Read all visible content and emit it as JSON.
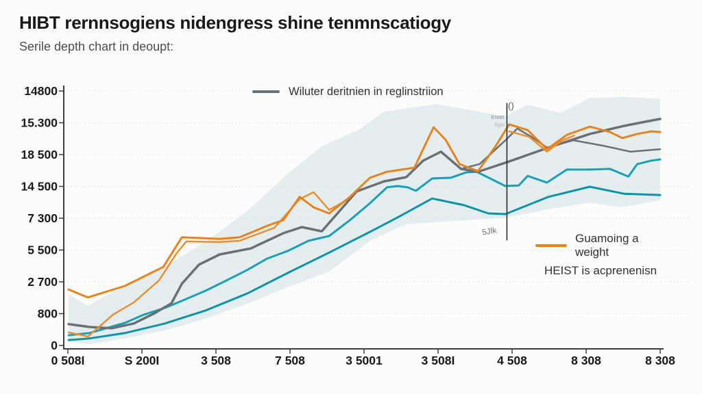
{
  "page": {
    "background": "#fcfcfa"
  },
  "header": {
    "title": "HIBT rernnsogiens nidengress shine tenmnscatiogy",
    "subtitle": "Serile depth chart in deoupt:"
  },
  "legend_top": {
    "label": "Wiluter deritnien in reglinstriion",
    "marker_color": "#6a7075"
  },
  "legend_right": {
    "line1": "Guamoing a weight",
    "line2": "HEIST is acprenenisn",
    "marker_color": "#e8821c"
  },
  "annotations": {
    "paren": "()",
    "note_top": "Inver",
    "note_top2": "hgw",
    "note_bottom": "5Jlk"
  },
  "colors": {
    "orange": "#e8821c",
    "gray": "#6a7075",
    "teal_upper": "#1b9fb5",
    "teal_lower": "#0d93a6",
    "band": "#cfe1e8",
    "axis": "#3c3f42",
    "grid": "#e4e4df",
    "tick_text": "#17191d"
  },
  "chart_data": {
    "type": "line",
    "title": "HIBT rernnsogiens nidengress shine tenmnscatiogy",
    "subtitle": "Serile depth chart in deoupt:",
    "grid": "dotted horizontal",
    "legend": [
      "Wiluter deritnien in reglinstriion",
      "Guamoing a weight / HEIST is acprenenisn"
    ],
    "xlim": [
      0,
      8
    ],
    "ylim": [
      0,
      8
    ],
    "x_tick_labels": [
      "0 508I",
      "S 200I",
      "3 508",
      "7 508",
      "3 5001",
      "3 508I",
      "4 508",
      "8 308",
      "8 308"
    ],
    "y_tick_labels_top_down": [
      "14800",
      "15.300",
      "18 500",
      "14 500",
      "7 300",
      "5 500",
      "2 700",
      "800",
      "0"
    ],
    "note": "y values are in gridline units (0 = bottom axis, 8 = top gridline); x in tick units 0-8",
    "band": {
      "color": "#cfe1e8",
      "opacity": 0.55,
      "top": [
        [
          0.01,
          1.61
        ],
        [
          0.27,
          1.25
        ],
        [
          0.77,
          1.89
        ],
        [
          1.31,
          2.49
        ],
        [
          1.86,
          3.25
        ],
        [
          2.42,
          4.22
        ],
        [
          2.97,
          5.4
        ],
        [
          3.43,
          6.26
        ],
        [
          3.94,
          6.8
        ],
        [
          4.27,
          7.35
        ],
        [
          4.98,
          7.59
        ],
        [
          5.91,
          7.2
        ],
        [
          6.21,
          7.57
        ],
        [
          6.65,
          7.31
        ],
        [
          7.05,
          7.78
        ],
        [
          7.51,
          7.81
        ],
        [
          8.0,
          7.76
        ]
      ],
      "bottom": [
        [
          0.01,
          0.11
        ],
        [
          0.29,
          0.04
        ],
        [
          0.77,
          0.22
        ],
        [
          1.31,
          0.47
        ],
        [
          1.86,
          0.84
        ],
        [
          2.42,
          1.31
        ],
        [
          2.97,
          1.83
        ],
        [
          3.53,
          2.32
        ],
        [
          4.08,
          3.29
        ],
        [
          4.57,
          3.81
        ],
        [
          5.19,
          3.91
        ],
        [
          5.68,
          3.98
        ],
        [
          5.91,
          4.02
        ],
        [
          6.49,
          4.28
        ],
        [
          7.05,
          4.49
        ],
        [
          7.47,
          4.34
        ],
        [
          8.0,
          4.56
        ]
      ]
    },
    "series": [
      {
        "name": "teal-lower",
        "color": "#0d93a6",
        "width": 3,
        "points": [
          [
            0.01,
            0.17
          ],
          [
            0.29,
            0.22
          ],
          [
            0.77,
            0.39
          ],
          [
            1.31,
            0.69
          ],
          [
            1.86,
            1.1
          ],
          [
            2.42,
            1.63
          ],
          [
            2.97,
            2.28
          ],
          [
            3.53,
            2.92
          ],
          [
            4.08,
            3.57
          ],
          [
            4.45,
            4.02
          ],
          [
            4.92,
            4.62
          ],
          [
            5.35,
            4.41
          ],
          [
            5.68,
            4.15
          ],
          [
            5.91,
            4.13
          ],
          [
            6.49,
            4.67
          ],
          [
            7.05,
            4.99
          ],
          [
            7.51,
            4.77
          ],
          [
            8.0,
            4.73
          ]
        ]
      },
      {
        "name": "teal-upper",
        "color": "#1b9fb5",
        "width": 3,
        "points": [
          [
            0.01,
            0.32
          ],
          [
            0.29,
            0.39
          ],
          [
            0.77,
            0.71
          ],
          [
            1.03,
            0.97
          ],
          [
            1.31,
            1.18
          ],
          [
            1.58,
            1.44
          ],
          [
            1.86,
            1.72
          ],
          [
            2.14,
            2.04
          ],
          [
            2.42,
            2.37
          ],
          [
            2.69,
            2.73
          ],
          [
            2.97,
            2.97
          ],
          [
            3.25,
            3.29
          ],
          [
            3.53,
            3.44
          ],
          [
            3.81,
            3.94
          ],
          [
            4.08,
            4.47
          ],
          [
            4.31,
            4.97
          ],
          [
            4.45,
            5.01
          ],
          [
            4.59,
            4.97
          ],
          [
            4.7,
            4.86
          ],
          [
            4.92,
            5.25
          ],
          [
            5.17,
            5.27
          ],
          [
            5.38,
            5.44
          ],
          [
            5.52,
            5.46
          ],
          [
            5.91,
            5.01
          ],
          [
            6.09,
            5.03
          ],
          [
            6.21,
            5.33
          ],
          [
            6.47,
            5.12
          ],
          [
            6.74,
            5.53
          ],
          [
            7.05,
            5.53
          ],
          [
            7.32,
            5.55
          ],
          [
            7.57,
            5.31
          ],
          [
            7.69,
            5.7
          ],
          [
            7.88,
            5.81
          ],
          [
            8.0,
            5.85
          ]
        ]
      },
      {
        "name": "gray-secondary",
        "color": "#6a7075",
        "width": 2.5,
        "points": [
          [
            5.34,
            5.57
          ],
          [
            5.56,
            5.7
          ],
          [
            5.91,
            6.45
          ],
          [
            6.07,
            6.82
          ],
          [
            6.26,
            6.56
          ],
          [
            6.47,
            6.22
          ],
          [
            6.83,
            6.45
          ],
          [
            7.23,
            6.28
          ],
          [
            7.6,
            6.09
          ],
          [
            8.0,
            6.17
          ]
        ]
      },
      {
        "name": "gray-main",
        "color": "#6a7075",
        "width": 3.5,
        "points": [
          [
            0.01,
            0.67
          ],
          [
            0.29,
            0.58
          ],
          [
            0.59,
            0.54
          ],
          [
            0.89,
            0.69
          ],
          [
            1.17,
            1.01
          ],
          [
            1.4,
            1.33
          ],
          [
            1.54,
            1.94
          ],
          [
            1.77,
            2.54
          ],
          [
            2.05,
            2.86
          ],
          [
            2.47,
            3.05
          ],
          [
            2.91,
            3.53
          ],
          [
            3.16,
            3.72
          ],
          [
            3.43,
            3.59
          ],
          [
            3.9,
            4.84
          ],
          [
            4.27,
            5.16
          ],
          [
            4.57,
            5.29
          ],
          [
            4.8,
            5.81
          ],
          [
            5.04,
            6.09
          ],
          [
            5.31,
            5.55
          ],
          [
            5.54,
            5.46
          ],
          [
            5.93,
            5.76
          ],
          [
            6.49,
            6.22
          ],
          [
            7.05,
            6.65
          ],
          [
            7.51,
            6.9
          ],
          [
            7.79,
            7.03
          ],
          [
            8.0,
            7.12
          ]
        ]
      },
      {
        "name": "orange-secondary",
        "color": "#ea8f2e",
        "width": 2.5,
        "points": [
          [
            0.01,
            0.41
          ],
          [
            0.27,
            0.28
          ],
          [
            0.61,
            0.97
          ],
          [
            0.89,
            1.35
          ],
          [
            1.23,
            2.04
          ],
          [
            1.47,
            2.9
          ],
          [
            1.6,
            3.27
          ],
          [
            2.05,
            3.25
          ],
          [
            2.32,
            3.29
          ],
          [
            2.79,
            3.7
          ],
          [
            3.13,
            4.6
          ],
          [
            3.32,
            4.82
          ],
          [
            3.53,
            4.26
          ],
          [
            3.76,
            4.56
          ]
        ]
      },
      {
        "name": "orange-secondary-right",
        "color": "#ea8f2e",
        "width": 2.5,
        "points": [
          [
            5.96,
            6.73
          ],
          [
            6.23,
            6.56
          ],
          [
            6.47,
            6.09
          ],
          [
            6.68,
            6.45
          ],
          [
            6.84,
            6.6
          ]
        ]
      },
      {
        "name": "orange-main",
        "color": "#e8821c",
        "width": 3,
        "points": [
          [
            0.01,
            1.76
          ],
          [
            0.27,
            1.51
          ],
          [
            0.77,
            1.87
          ],
          [
            1.03,
            2.17
          ],
          [
            1.29,
            2.47
          ],
          [
            1.54,
            3.4
          ],
          [
            2.05,
            3.35
          ],
          [
            2.32,
            3.4
          ],
          [
            2.69,
            3.76
          ],
          [
            2.91,
            3.94
          ],
          [
            3.13,
            4.67
          ],
          [
            3.32,
            4.34
          ],
          [
            3.53,
            4.15
          ],
          [
            3.81,
            4.67
          ],
          [
            4.08,
            5.27
          ],
          [
            4.31,
            5.46
          ],
          [
            4.68,
            5.59
          ],
          [
            4.94,
            6.86
          ],
          [
            5.1,
            6.47
          ],
          [
            5.29,
            5.7
          ],
          [
            5.54,
            5.48
          ],
          [
            5.77,
            6.24
          ],
          [
            5.96,
            6.95
          ],
          [
            6.21,
            6.77
          ],
          [
            6.47,
            6.17
          ],
          [
            6.74,
            6.62
          ],
          [
            7.05,
            6.88
          ],
          [
            7.32,
            6.71
          ],
          [
            7.49,
            6.52
          ],
          [
            7.69,
            6.65
          ],
          [
            7.88,
            6.73
          ],
          [
            8.0,
            6.71
          ]
        ]
      }
    ],
    "vline": {
      "x": 5.93,
      "y_from": 3.3,
      "y_to": 7.62,
      "color": "#2b2b2b"
    }
  }
}
